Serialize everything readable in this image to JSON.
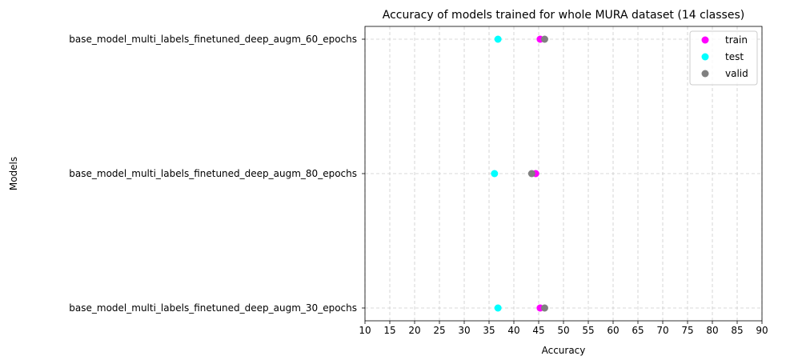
{
  "chart_data": {
    "type": "scatter",
    "title": "Accuracy of models trained for whole MURA dataset (14 classes)",
    "xlabel": "Accuracy",
    "ylabel": "Models",
    "xlim": [
      10,
      90
    ],
    "xticks": [
      10,
      15,
      20,
      25,
      30,
      35,
      40,
      45,
      50,
      55,
      60,
      65,
      70,
      75,
      80,
      85,
      90
    ],
    "categories": [
      "base_model_multi_labels_finetuned_deep_augm_60_epochs",
      "base_model_multi_labels_finetuned_deep_augm_80_epochs",
      "base_model_multi_labels_finetuned_deep_augm_30_epochs"
    ],
    "series": [
      {
        "name": "train",
        "color": "#ff00ff",
        "values": [
          45.3,
          44.4,
          45.3
        ]
      },
      {
        "name": "test",
        "color": "#00ffff",
        "values": [
          36.8,
          36.1,
          36.8
        ]
      },
      {
        "name": "valid",
        "color": "#808080",
        "values": [
          46.2,
          43.6,
          46.2
        ]
      }
    ],
    "grid": true,
    "grid_style": "dashed",
    "legend_position": "top-right"
  }
}
